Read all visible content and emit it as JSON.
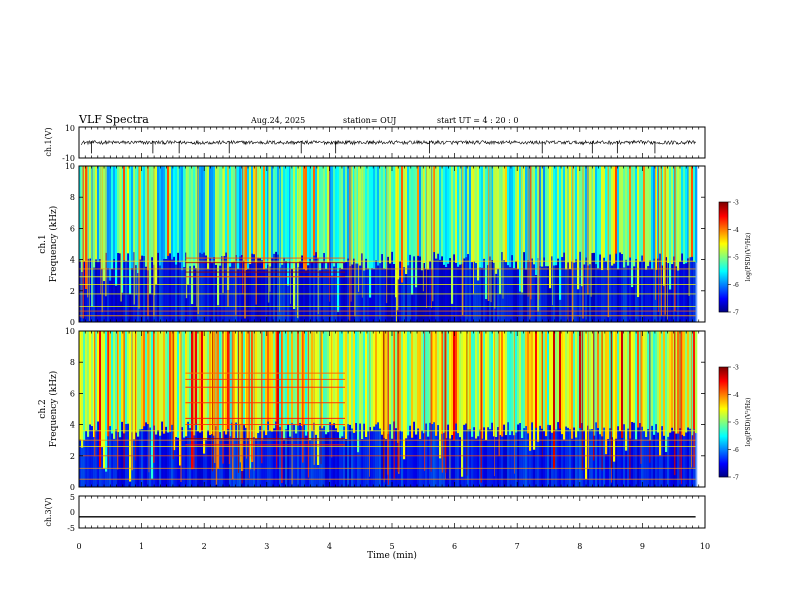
{
  "header": {
    "title": "VLF Spectra",
    "date": "Aug.24, 2025",
    "station": "station= OUJ",
    "start": "start  UT =   4 : 20 : 0"
  },
  "chart_data": [
    {
      "type": "line",
      "name": "ch.1 waveform",
      "ylabel": "ch.1(V)",
      "xlim": [
        0,
        10
      ],
      "ylim": [
        -10,
        10
      ],
      "yticks": [
        "10",
        "-10"
      ],
      "x_end": 9.85,
      "baseline": 0,
      "noise_amplitude": 1.2,
      "spikes": [
        0.2,
        1.18,
        1.6,
        2.4,
        3.55,
        4.1,
        5.6,
        7.4,
        8.2,
        8.6,
        9.2
      ]
    },
    {
      "type": "heatmap",
      "name": "ch.1 spectrogram",
      "ylabel_channel": "ch.1",
      "ylabel": "Frequency (kHz)",
      "xlim": [
        0,
        10
      ],
      "x_end": 9.85,
      "ylim": [
        0,
        10
      ],
      "yticks": [
        "0",
        "2",
        "4",
        "6",
        "8",
        "10"
      ],
      "colorbar": {
        "label": "log(PSD)(V²/Hz)",
        "range": [
          -7,
          -3
        ],
        "ticks": [
          "-3",
          "-4",
          "-5",
          "-6",
          "-7"
        ],
        "colormap": "jet"
      },
      "background_band_kHz": [
        4.5,
        10
      ],
      "background_level": -5.3,
      "lower_band_level": -6.4,
      "tone_lines_kHz": [
        0.4,
        0.7,
        1.0,
        1.8,
        2.4,
        2.9,
        3.4,
        3.9
      ],
      "burst_interval_min": [
        1.7,
        4.25
      ],
      "burst_lines_kHz": [
        4.1,
        3.8,
        3.2,
        2.9
      ]
    },
    {
      "type": "heatmap",
      "name": "ch.2 spectrogram",
      "ylabel_channel": "ch.2",
      "ylabel": "Frequency (kHz)",
      "xlim": [
        0,
        10
      ],
      "x_end": 9.85,
      "ylim": [
        0,
        10
      ],
      "yticks": [
        "0",
        "2",
        "4",
        "6",
        "8",
        "10"
      ],
      "colorbar": {
        "label": "log(PSD)(V²/Hz)",
        "range": [
          -7,
          -3
        ],
        "ticks": [
          "-3",
          "-4",
          "-5",
          "-6",
          "-7"
        ],
        "colormap": "jet"
      },
      "background_band_kHz": [
        4.2,
        10
      ],
      "background_level": -4.8,
      "lower_band_level": -6.3,
      "tone_lines_kHz": [
        0.5,
        1.2,
        2.0,
        2.6,
        3.0,
        3.6
      ],
      "burst_interval_min": [
        1.7,
        4.25
      ],
      "burst_lines_kHz": [
        7.3,
        6.9,
        6.4,
        5.4,
        4.4,
        4.0,
        3.1,
        2.7
      ]
    },
    {
      "type": "line",
      "name": "ch.3 waveform",
      "ylabel": "ch.3(V)",
      "xlim": [
        0,
        10
      ],
      "ylim": [
        -5,
        5
      ],
      "yticks": [
        "5",
        "0",
        "-5"
      ],
      "x_end": 9.85,
      "constant_value": -1.5
    }
  ],
  "xaxis": {
    "label": "Time  (min)",
    "ticks": [
      "0",
      "1",
      "2",
      "3",
      "4",
      "5",
      "6",
      "7",
      "8",
      "9",
      "10"
    ]
  }
}
